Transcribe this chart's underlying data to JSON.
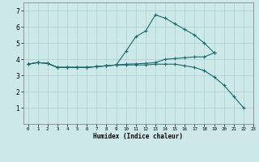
{
  "title": "",
  "xlabel": "Humidex (Indice chaleur)",
  "background_color": "#cce8e8",
  "line_color": "#1a6b6b",
  "grid_color": "#aacfcf",
  "xlim": [
    -0.5,
    23
  ],
  "ylim": [
    0,
    7.5
  ],
  "yticks": [
    1,
    2,
    3,
    4,
    5,
    6,
    7
  ],
  "xticks": [
    0,
    1,
    2,
    3,
    4,
    5,
    6,
    7,
    8,
    9,
    10,
    11,
    12,
    13,
    14,
    15,
    16,
    17,
    18,
    19,
    20,
    21,
    22,
    23
  ],
  "series": [
    {
      "x": [
        0,
        1,
        2,
        3,
        4,
        5,
        6,
        7,
        8,
        9,
        10,
        11,
        12,
        13,
        14,
        15,
        16,
        17,
        18,
        19
      ],
      "y": [
        3.7,
        3.8,
        3.75,
        3.5,
        3.5,
        3.5,
        3.5,
        3.55,
        3.6,
        3.65,
        4.5,
        5.4,
        5.75,
        6.75,
        6.55,
        6.2,
        5.85,
        5.5,
        5.0,
        4.4
      ]
    },
    {
      "x": [
        0,
        1,
        2,
        3,
        4,
        5,
        6,
        7,
        8,
        9,
        10,
        11,
        12,
        13,
        14,
        15,
        16,
        17,
        18,
        19
      ],
      "y": [
        3.7,
        3.8,
        3.75,
        3.5,
        3.5,
        3.5,
        3.5,
        3.55,
        3.6,
        3.65,
        3.7,
        3.72,
        3.75,
        3.8,
        4.0,
        4.05,
        4.1,
        4.15,
        4.15,
        4.4
      ]
    },
    {
      "x": [
        0,
        1,
        2,
        3,
        4,
        5,
        6,
        7,
        8,
        9,
        10,
        11,
        12,
        13,
        14,
        15,
        16,
        17,
        18,
        19,
        20,
        21,
        22
      ],
      "y": [
        3.7,
        3.8,
        3.75,
        3.5,
        3.5,
        3.5,
        3.5,
        3.55,
        3.6,
        3.65,
        3.65,
        3.65,
        3.65,
        3.7,
        3.7,
        3.7,
        3.6,
        3.5,
        3.3,
        2.9,
        2.4,
        1.7,
        1.0
      ]
    }
  ]
}
